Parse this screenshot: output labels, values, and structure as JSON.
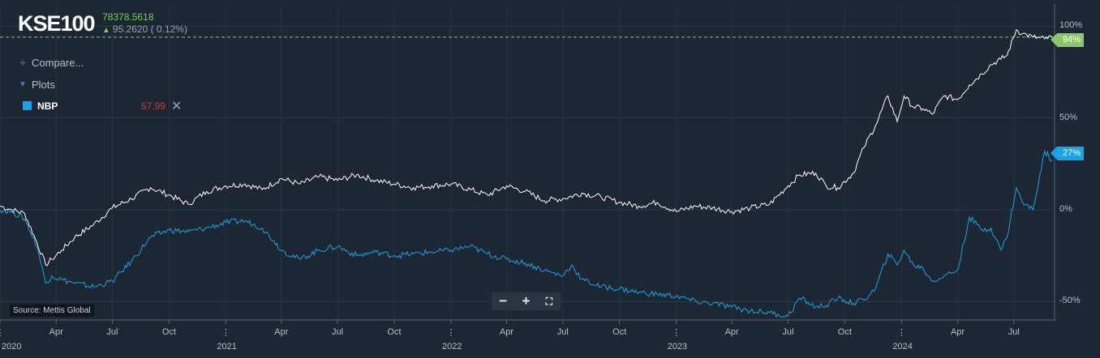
{
  "header": {
    "ticker": "KSE100",
    "last_price": "78378.5618",
    "change_arrow": "arrow-up-icon",
    "change": "95.2620 ( 0.12%)"
  },
  "menu": {
    "compare_label": "Compare...",
    "plots_label": "Plots"
  },
  "legend": {
    "name": "NBP",
    "value": "57.99",
    "close_icon": "close-icon"
  },
  "source_label": "Source: Mettis Global",
  "zoom": {
    "minus": "−",
    "plus": "+",
    "fullscreen": "⛶"
  },
  "colors": {
    "background": "#1c2733",
    "kse100_line": "#ffffff",
    "nbp_line": "#1aa3e8",
    "kse100_tag": "#8cc66b",
    "nbp_tag": "#1aa3e8"
  },
  "chart_data": {
    "type": "line",
    "title": "KSE100",
    "ylabel": "",
    "y_ticks": [
      "100%",
      "50%",
      "0%",
      "-50%"
    ],
    "y_tick_values": [
      100,
      50,
      0,
      -50
    ],
    "ylim": [
      -60,
      112
    ],
    "xlim": [
      "2020-01-01",
      "2024-09-05"
    ],
    "x_ticks": [
      {
        "date": "2020-01-01",
        "label": "2020"
      },
      {
        "date": "2020-04-01",
        "label": "Apr"
      },
      {
        "date": "2020-07-01",
        "label": "Jul"
      },
      {
        "date": "2020-10-01",
        "label": "Oct"
      },
      {
        "date": "2021-01-01",
        "label": "2021"
      },
      {
        "date": "2021-04-01",
        "label": "Apr"
      },
      {
        "date": "2021-07-01",
        "label": "Jul"
      },
      {
        "date": "2021-10-01",
        "label": "Oct"
      },
      {
        "date": "2022-01-01",
        "label": "2022"
      },
      {
        "date": "2022-04-01",
        "label": "Apr"
      },
      {
        "date": "2022-07-01",
        "label": "Jul"
      },
      {
        "date": "2022-10-01",
        "label": "Oct"
      },
      {
        "date": "2023-01-01",
        "label": "2023"
      },
      {
        "date": "2023-04-01",
        "label": "Apr"
      },
      {
        "date": "2023-07-01",
        "label": "Jul"
      },
      {
        "date": "2023-10-01",
        "label": "Oct"
      },
      {
        "date": "2024-01-01",
        "label": "2024"
      },
      {
        "date": "2024-04-01",
        "label": "Apr"
      },
      {
        "date": "2024-07-01",
        "label": "Jul"
      }
    ],
    "grid": true,
    "reference_line": 94,
    "series": [
      {
        "name": "KSE100",
        "end_label": "94%",
        "x": [
          "2020-01-01",
          "2020-01-20",
          "2020-02-10",
          "2020-03-01",
          "2020-03-15",
          "2020-03-25",
          "2020-04-10",
          "2020-05-01",
          "2020-06-01",
          "2020-07-01",
          "2020-08-01",
          "2020-09-01",
          "2020-10-01",
          "2020-11-01",
          "2020-12-01",
          "2021-01-01",
          "2021-02-01",
          "2021-03-01",
          "2021-04-01",
          "2021-05-01",
          "2021-06-01",
          "2021-07-01",
          "2021-08-01",
          "2021-09-01",
          "2021-10-01",
          "2021-11-01",
          "2021-12-01",
          "2022-01-01",
          "2022-02-01",
          "2022-03-01",
          "2022-04-01",
          "2022-05-01",
          "2022-06-01",
          "2022-07-01",
          "2022-08-01",
          "2022-09-01",
          "2022-10-01",
          "2022-11-01",
          "2022-12-01",
          "2023-01-01",
          "2023-02-01",
          "2023-03-01",
          "2023-04-01",
          "2023-05-01",
          "2023-06-01",
          "2023-07-01",
          "2023-07-20",
          "2023-08-15",
          "2023-09-01",
          "2023-09-20",
          "2023-10-15",
          "2023-11-01",
          "2023-11-20",
          "2023-12-10",
          "2023-12-25",
          "2024-01-05",
          "2024-01-20",
          "2024-02-05",
          "2024-02-20",
          "2024-03-10",
          "2024-04-01",
          "2024-04-20",
          "2024-05-10",
          "2024-05-25",
          "2024-06-10",
          "2024-06-20",
          "2024-07-05",
          "2024-07-15",
          "2024-08-01",
          "2024-08-20",
          "2024-09-01"
        ],
        "y": [
          2,
          0,
          -2,
          -18,
          -30,
          -27,
          -22,
          -15,
          -8,
          1,
          6,
          12,
          8,
          3,
          10,
          13,
          14,
          11,
          17,
          14,
          18,
          16,
          19,
          16,
          14,
          12,
          13,
          14,
          11,
          8,
          13,
          10,
          5,
          6,
          9,
          7,
          4,
          2,
          4,
          -1,
          2,
          1,
          -1,
          1,
          3,
          13,
          19,
          20,
          13,
          12,
          20,
          34,
          46,
          62,
          48,
          62,
          56,
          55,
          52,
          62,
          60,
          68,
          74,
          79,
          82,
          84,
          98,
          96,
          94,
          93,
          94
        ]
      },
      {
        "name": "NBP",
        "end_label": "27%",
        "x": [
          "2020-01-01",
          "2020-01-20",
          "2020-02-10",
          "2020-03-01",
          "2020-03-15",
          "2020-03-25",
          "2020-04-10",
          "2020-05-01",
          "2020-06-01",
          "2020-07-01",
          "2020-08-01",
          "2020-09-01",
          "2020-10-01",
          "2020-11-01",
          "2020-12-01",
          "2021-01-01",
          "2021-02-01",
          "2021-03-01",
          "2021-03-20",
          "2021-04-01",
          "2021-05-01",
          "2021-06-01",
          "2021-07-01",
          "2021-08-01",
          "2021-09-01",
          "2021-10-01",
          "2021-11-01",
          "2021-12-01",
          "2022-01-01",
          "2022-02-01",
          "2022-03-01",
          "2022-04-01",
          "2022-05-01",
          "2022-06-01",
          "2022-07-01",
          "2022-07-15",
          "2022-08-01",
          "2022-09-01",
          "2022-10-01",
          "2022-11-01",
          "2022-12-01",
          "2023-01-01",
          "2023-02-01",
          "2023-03-01",
          "2023-04-01",
          "2023-05-01",
          "2023-06-01",
          "2023-07-01",
          "2023-07-20",
          "2023-08-15",
          "2023-09-01",
          "2023-09-20",
          "2023-10-15",
          "2023-11-01",
          "2023-11-20",
          "2023-12-10",
          "2023-12-25",
          "2024-01-05",
          "2024-01-20",
          "2024-02-05",
          "2024-02-20",
          "2024-03-10",
          "2024-04-01",
          "2024-04-20",
          "2024-05-10",
          "2024-05-25",
          "2024-06-10",
          "2024-06-20",
          "2024-07-05",
          "2024-07-15",
          "2024-08-01",
          "2024-08-20",
          "2024-09-01"
        ],
        "y": [
          0,
          -1,
          -5,
          -20,
          -40,
          -36,
          -38,
          -40,
          -42,
          -39,
          -28,
          -15,
          -11,
          -12,
          -10,
          -7,
          -6,
          -10,
          -17,
          -22,
          -27,
          -22,
          -20,
          -25,
          -23,
          -25,
          -24,
          -23,
          -22,
          -20,
          -24,
          -27,
          -29,
          -33,
          -36,
          -30,
          -38,
          -42,
          -43,
          -45,
          -46,
          -47,
          -50,
          -51,
          -53,
          -55,
          -56,
          -58,
          -48,
          -53,
          -52,
          -48,
          -51,
          -49,
          -43,
          -24,
          -30,
          -22,
          -30,
          -32,
          -39,
          -36,
          -33,
          -4,
          -11,
          -10,
          -22,
          -15,
          12,
          4,
          0,
          32,
          27
        ]
      }
    ]
  }
}
